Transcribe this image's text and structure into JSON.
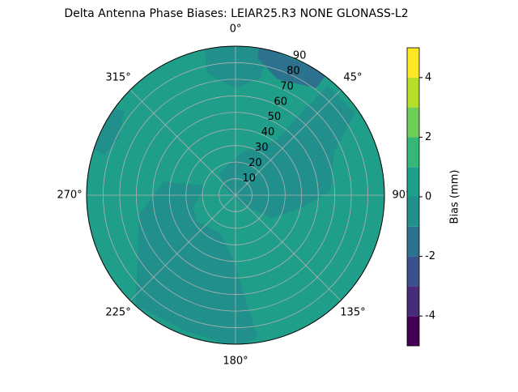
{
  "chart_data": {
    "type": "polar_contour",
    "title": "Delta Antenna Phase Biases: LEIAR25.R3      NONE GLONASS-L2",
    "xticks": [
      {
        "value": 0,
        "label": "0°"
      },
      {
        "value": 45,
        "label": "45°"
      },
      {
        "value": 90,
        "label": "90°"
      },
      {
        "value": 135,
        "label": "135°"
      },
      {
        "value": 180,
        "label": "180°"
      },
      {
        "value": 225,
        "label": "225°"
      },
      {
        "value": 270,
        "label": "270°"
      },
      {
        "value": 315,
        "label": "315°"
      }
    ],
    "ylim": [
      0,
      90
    ],
    "yticks": [
      10,
      20,
      30,
      40,
      50,
      60,
      70,
      80,
      90
    ],
    "grid": true,
    "levels": [
      -5,
      -4,
      -3,
      -2,
      -1,
      0,
      1,
      2,
      3,
      4,
      5
    ],
    "colors": [
      "#440154",
      "#472c7a",
      "#3b518b",
      "#2c718e",
      "#21908d",
      "#1f9e89",
      "#35b779",
      "#6ece58",
      "#b5de2b",
      "#fde725"
    ],
    "background_range": [
      0,
      1
    ],
    "colorbar_label": "Bias (mm)",
    "colorbar_ticks": [
      -4,
      -2,
      0,
      2,
      4
    ],
    "regions": [
      {
        "range": [
          -1,
          0
        ],
        "x": [
          328,
          10,
          39,
          40,
          41,
          55,
          65,
          87,
          100,
          119,
          135,
          315
        ],
        "y": [
          15,
          25,
          42,
          64,
          85,
          86,
          64,
          56,
          39,
          25,
          6,
          8
        ]
      },
      {
        "range": [
          -1,
          0
        ],
        "x": [
          282,
          279,
          258,
          222,
          200,
          180,
          172,
          176,
          181,
          203,
          236,
          256
        ],
        "y": [
          21,
          43,
          58,
          88,
          86,
          90,
          86,
          63,
          44,
          26,
          30,
          28
        ]
      },
      {
        "range": [
          -1,
          0
        ],
        "x": [
          349,
          348,
          0,
          11,
          12
        ],
        "y": [
          90,
          76,
          66,
          73,
          90
        ]
      },
      {
        "range": [
          -2,
          -1
        ],
        "x": [
          10,
          20,
          36,
          36,
          10
        ],
        "y": [
          85,
          76,
          82,
          90,
          90
        ]
      },
      {
        "range": [
          -1,
          0
        ],
        "x": [
          306,
          296,
          288,
          289,
          305
        ],
        "y": [
          85,
          80,
          84,
          90,
          90
        ]
      }
    ]
  }
}
